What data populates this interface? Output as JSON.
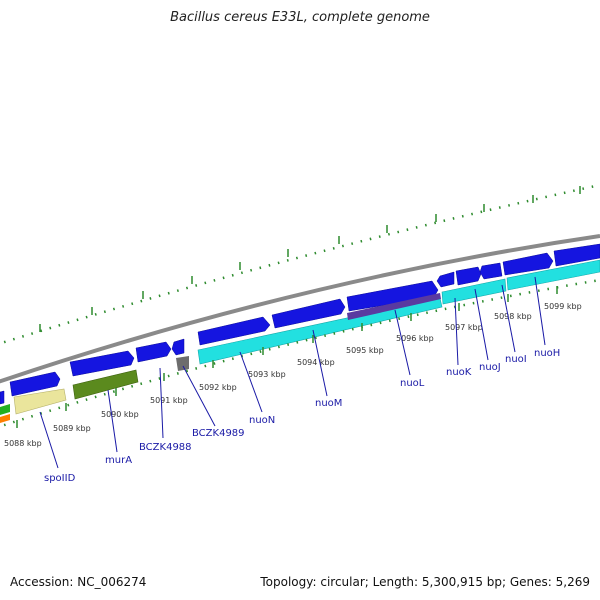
{
  "title": "Bacillus cereus E33L, complete genome",
  "footer": {
    "accession": "Accession: NC_006274",
    "summary": "Topology: circular; Length: 5,300,915 bp; Genes: 5,269"
  },
  "colors": {
    "backbone": "#8a8a8a",
    "ticks": "#2e8b2e",
    "forward_gene": "#1515e0",
    "cds_cyan": "#22e0e0",
    "cds_yellow": "#eae59c",
    "cds_olive": "#5b8a1e",
    "cds_gray": "#6d6d6d",
    "cds_purple": "#5a3aa0",
    "label_blue": "#1a1aa6"
  },
  "scale_labels": [
    "5088 kbp",
    "5089 kbp",
    "5090 kbp",
    "5091 kbp",
    "5092 kbp",
    "5093 kbp",
    "5094 kbp",
    "5095 kbp",
    "5096 kbp",
    "5097 kbp",
    "5098 kbp",
    "5099 kbp"
  ],
  "gene_labels": [
    "spoIID",
    "murA",
    "BCZK4988",
    "BCZK4989",
    "nuoN",
    "nuoM",
    "nuoL",
    "nuoK",
    "nuoJ",
    "nuoI",
    "nuoH"
  ]
}
